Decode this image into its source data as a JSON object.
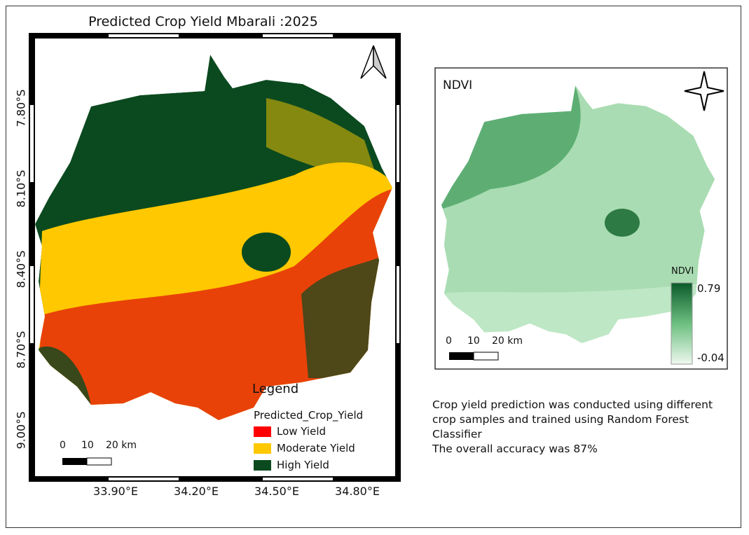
{
  "left_map": {
    "title": "Predicted Crop Yield Mbarali :2025",
    "lat_labels": [
      "7.80°S",
      "8.10°S",
      "8.40°S",
      "8.70°S",
      "9.00°S"
    ],
    "lon_labels": [
      "33.90°E",
      "34.20°E",
      "34.50°E",
      "34.80°E"
    ],
    "north_arrow_icon": "north-arrow-icon",
    "scale_bar": {
      "labels": [
        "0",
        "10",
        "20 km"
      ]
    },
    "legend": {
      "title": "Legend",
      "layer": "Predicted_Crop_Yield",
      "classes": [
        {
          "label": "Low Yield",
          "color": "#ff0000"
        },
        {
          "label": "Moderate Yield",
          "color": "#ffc800"
        },
        {
          "label": "High Yield",
          "color": "#0b4a1f"
        }
      ]
    }
  },
  "right_map": {
    "title": "NDVI",
    "compass_icon": "compass-star-icon",
    "scale_bar": {
      "labels": [
        "0",
        "10",
        "20 km"
      ]
    },
    "legend": {
      "title": "NDVI",
      "max": "0.79",
      "min": "-0.04",
      "color_high": "#0b5a2a",
      "color_low": "#eef8ee"
    }
  },
  "note": {
    "lines": [
      "Crop yield prediction was conducted using different",
      "crop samples and trained using Random Forest",
      "Classifier",
      "The overall accuracy was 87%"
    ]
  }
}
